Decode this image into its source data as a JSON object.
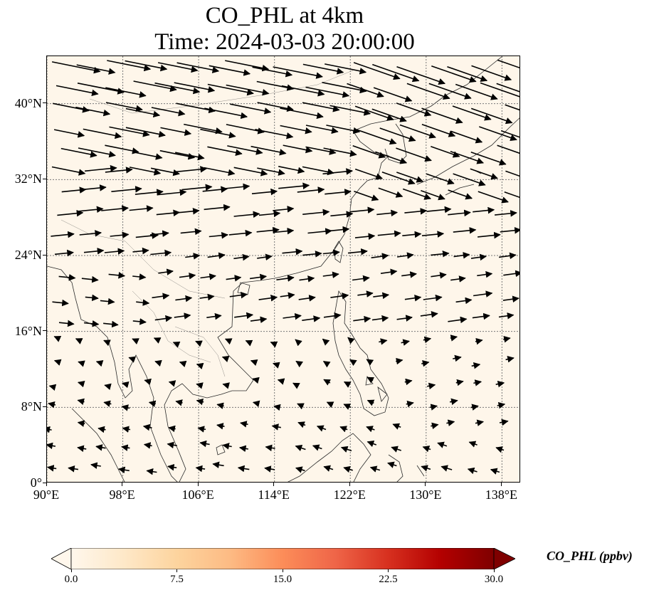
{
  "title": {
    "line1": "CO_PHL at 4km",
    "line2": "Time: 2024-03-03 20:00:00"
  },
  "map": {
    "extent": {
      "lon": [
        90,
        140
      ],
      "lat": [
        0,
        45
      ]
    },
    "lat_ticks": [
      {
        "value": 0,
        "label": "0°"
      },
      {
        "value": 8,
        "label": "8°N"
      },
      {
        "value": 16,
        "label": "16°N"
      },
      {
        "value": 24,
        "label": "24°N"
      },
      {
        "value": 32,
        "label": "32°N"
      },
      {
        "value": 40,
        "label": "40°N"
      }
    ],
    "lon_ticks": [
      {
        "value": 90,
        "label": "90°E"
      },
      {
        "value": 98,
        "label": "98°E"
      },
      {
        "value": 106,
        "label": "106°E"
      },
      {
        "value": 114,
        "label": "114°E"
      },
      {
        "value": 122,
        "label": "122°E"
      },
      {
        "value": 130,
        "label": "130°E"
      },
      {
        "value": 138,
        "label": "138°E"
      }
    ],
    "gridlines": true,
    "field_color": "#fef6ea",
    "coastline_color": "#222222",
    "wind_arrows": "black quiver vectors; strong westerlies north of ~24°N, weaker easterly/northeasterly flow in the tropics"
  },
  "colorbar": {
    "label": "CO_PHL (ppbv)",
    "min": 0.0,
    "max": 30.0,
    "extend": "both",
    "colormap": [
      "#fff7ec",
      "#fee8c8",
      "#fdd49e",
      "#fdbb84",
      "#fc8d59",
      "#ef6548",
      "#d7301f",
      "#b30000",
      "#7f0000"
    ],
    "ticks": [
      "0.0",
      "7.5",
      "15.0",
      "22.5",
      "30.0"
    ]
  }
}
